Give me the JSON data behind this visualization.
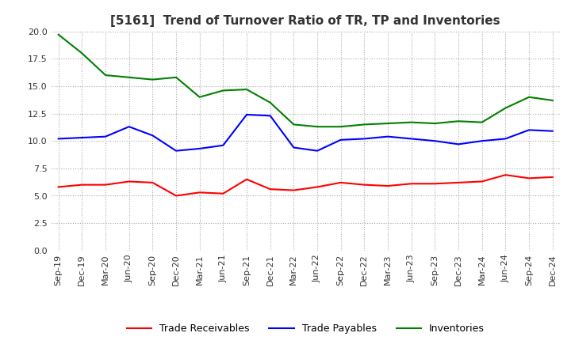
{
  "title": "[5161]  Trend of Turnover Ratio of TR, TP and Inventories",
  "x_labels": [
    "Sep-19",
    "Dec-19",
    "Mar-20",
    "Jun-20",
    "Sep-20",
    "Dec-20",
    "Mar-21",
    "Jun-21",
    "Sep-21",
    "Dec-21",
    "Mar-22",
    "Jun-22",
    "Sep-22",
    "Dec-22",
    "Mar-23",
    "Jun-23",
    "Sep-23",
    "Dec-23",
    "Mar-24",
    "Jun-24",
    "Sep-24",
    "Dec-24"
  ],
  "trade_receivables": [
    5.8,
    6.0,
    6.0,
    6.3,
    6.2,
    5.0,
    5.3,
    5.2,
    6.5,
    5.6,
    5.5,
    5.8,
    6.2,
    6.0,
    5.9,
    6.1,
    6.1,
    6.2,
    6.3,
    6.9,
    6.6,
    6.7
  ],
  "trade_payables": [
    10.2,
    10.3,
    10.4,
    11.3,
    10.5,
    9.1,
    9.3,
    9.6,
    12.4,
    12.3,
    9.4,
    9.1,
    10.1,
    10.2,
    10.4,
    10.2,
    10.0,
    9.7,
    10.0,
    10.2,
    11.0,
    10.9
  ],
  "inventories": [
    19.7,
    18.0,
    16.0,
    15.8,
    15.6,
    15.8,
    14.0,
    14.6,
    14.7,
    13.5,
    11.5,
    11.3,
    11.3,
    11.5,
    11.6,
    11.7,
    11.6,
    11.8,
    11.7,
    13.0,
    14.0,
    13.7
  ],
  "tr_color": "#ff0000",
  "tp_color": "#0000ff",
  "inv_color": "#008000",
  "ylim": [
    0.0,
    20.0
  ],
  "yticks": [
    0.0,
    2.5,
    5.0,
    7.5,
    10.0,
    12.5,
    15.0,
    17.5,
    20.0
  ],
  "ytick_labels": [
    "0.0",
    "2.5",
    "5.0",
    "7.5",
    "10.0",
    "12.5",
    "15.0",
    "17.5",
    "20.0"
  ],
  "bg_color": "#ffffff",
  "grid_color": "#aaaaaa",
  "title_fontsize": 11,
  "tick_fontsize": 8,
  "legend_fontsize": 9
}
